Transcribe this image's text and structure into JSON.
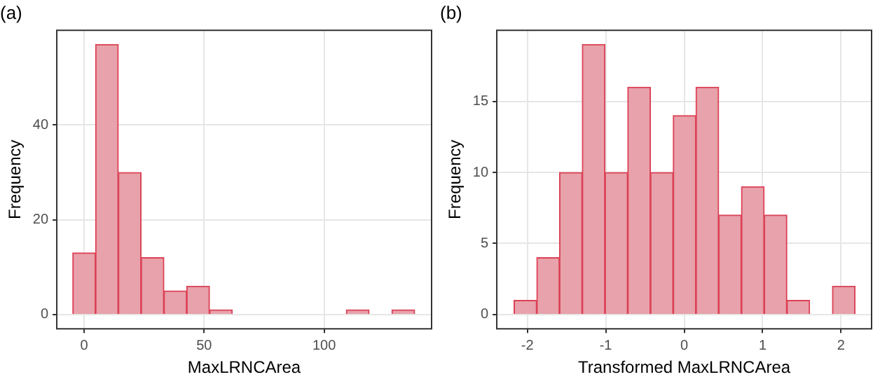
{
  "chart_data": [
    {
      "type": "histogram",
      "title": "(a)",
      "xlabel": "MaxLRNCArea",
      "ylabel": "Frequency",
      "color": "#e8a2ab",
      "bins": [
        -4.75,
        4.75,
        14.25,
        23.75,
        33.25,
        42.75,
        52.25,
        61.75,
        71.25,
        80.75,
        90.25,
        99.75,
        109.25,
        118.75,
        128.25,
        137.75
      ],
      "values": [
        13,
        57,
        30,
        12,
        5,
        6,
        1,
        0,
        0,
        0,
        0,
        0,
        1,
        0,
        1
      ],
      "xlim": [
        -11.4,
        144.8
      ],
      "xticks": [
        0,
        50,
        100
      ],
      "ylim": [
        -3,
        60
      ],
      "yticks": [
        0,
        20,
        40
      ],
      "grid": true
    },
    {
      "type": "histogram",
      "title": "(b)",
      "xlabel": "Transformed MaxLRNCArea",
      "ylabel": "Frequency",
      "color": "#e8a2ab",
      "bins": [
        -2.17,
        -1.88,
        -1.59,
        -1.3,
        -1.01,
        -0.72,
        -0.43,
        -0.14,
        0.15,
        0.44,
        0.73,
        1.02,
        1.31,
        1.6,
        1.89,
        2.18
      ],
      "values": [
        1,
        4,
        10,
        19,
        10,
        16,
        10,
        14,
        16,
        7,
        9,
        7,
        1,
        0,
        2
      ],
      "xlim": [
        -2.39,
        2.39
      ],
      "xticks": [
        -2,
        -1,
        0,
        1,
        2
      ],
      "ylim": [
        -1,
        20
      ],
      "yticks": [
        0,
        5,
        10,
        15
      ],
      "grid": true
    }
  ]
}
